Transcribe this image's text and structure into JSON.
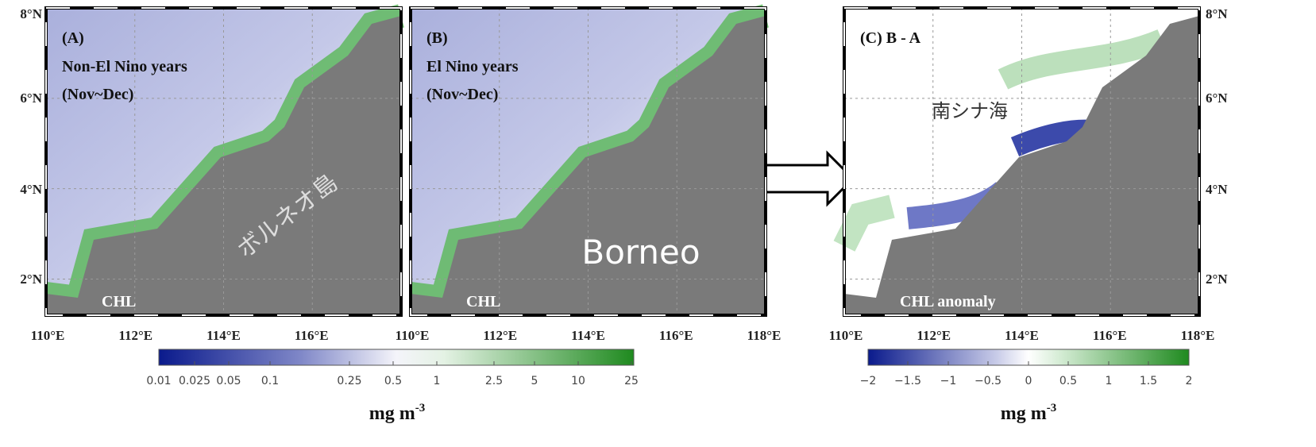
{
  "panels": [
    {
      "label": "(A)",
      "title": [
        "Non-El Nino years",
        "(Nov~Dec)"
      ],
      "variable": "CHL",
      "island_label": "ボルネオ島"
    },
    {
      "label": "(B)",
      "title": [
        "El Nino years",
        "(Nov~Dec)"
      ],
      "variable": "CHL",
      "island_label": "Borneo"
    },
    {
      "label": "(C) B - A",
      "sea_label": "南シナ海",
      "variable": "CHL anomaly"
    }
  ],
  "axes": {
    "lat": [
      "8°N",
      "6°N",
      "4°N",
      "2°N"
    ],
    "lon": [
      "110°E",
      "112°E",
      "114°E",
      "116°E",
      "118°E"
    ]
  },
  "colorbars": [
    {
      "ticks": [
        "0.01",
        "0.025",
        "0.05",
        "0.1",
        "0.25",
        "0.5",
        "1",
        "2.5",
        "5",
        "10",
        "25"
      ],
      "units": {
        "text": "mg m",
        "sup": "-3"
      }
    },
    {
      "ticks": [
        "−2",
        "−1.5",
        "−1",
        "−0.5",
        "0",
        "0.5",
        "1",
        "1.5",
        "2"
      ],
      "units": {
        "text": "mg m",
        "sup": "-3"
      }
    }
  ]
}
